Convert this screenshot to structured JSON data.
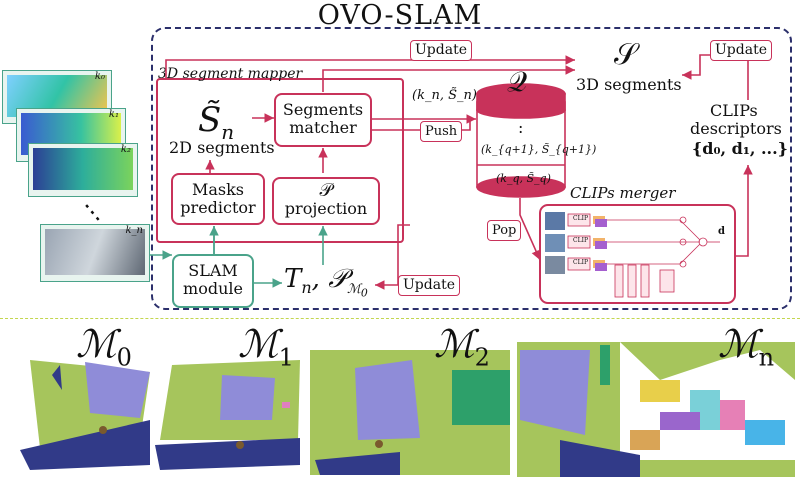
{
  "title": "OVO-SLAM",
  "mapper_label": "3D segment mapper",
  "update": "Update",
  "segments": {
    "symbol": "𝒮",
    "label": "3D segments"
  },
  "s2d": {
    "symbol": "S̃",
    "sub": "n",
    "label": "2D segments"
  },
  "matcher": {
    "line1": "Segments",
    "line2": "matcher"
  },
  "masks": {
    "line1": "Masks",
    "line2": "predictor"
  },
  "projection": {
    "symbol": "𝒫",
    "label": "projection"
  },
  "slam": {
    "line1": "SLAM",
    "line2": "module"
  },
  "pose": {
    "t": "T",
    "tsub": "n",
    "p": "𝒫",
    "psub": "ℳ",
    "psubsub": "0"
  },
  "queue": {
    "symbol": "𝒬",
    "push": "Push",
    "pop": "Pop",
    "in_label": "(k_n, S̃_n)",
    "mid": ":",
    "e1": "(k_{q+1}, S̃_{q+1})",
    "e2": "(k_q, S̃_q)"
  },
  "clips": {
    "merger": "CLIPs merger",
    "line1": "CLIPs",
    "line2": "descriptors",
    "set": "{d₀, d₁, ...}",
    "clip_tag": "CLIP",
    "out": "d"
  },
  "frames": [
    "k₀",
    "k₁",
    "k₂",
    "k_n"
  ],
  "maps": [
    {
      "m": "ℳ",
      "sub": "0"
    },
    {
      "m": "ℳ",
      "sub": "1"
    },
    {
      "m": "ℳ",
      "sub": "2"
    },
    {
      "m": "ℳ",
      "sub": "n"
    }
  ],
  "colors": {
    "pink": "#c8325a",
    "navy": "#2b2f6b",
    "green": "#4aa38a",
    "lime": "#c3d64f"
  }
}
